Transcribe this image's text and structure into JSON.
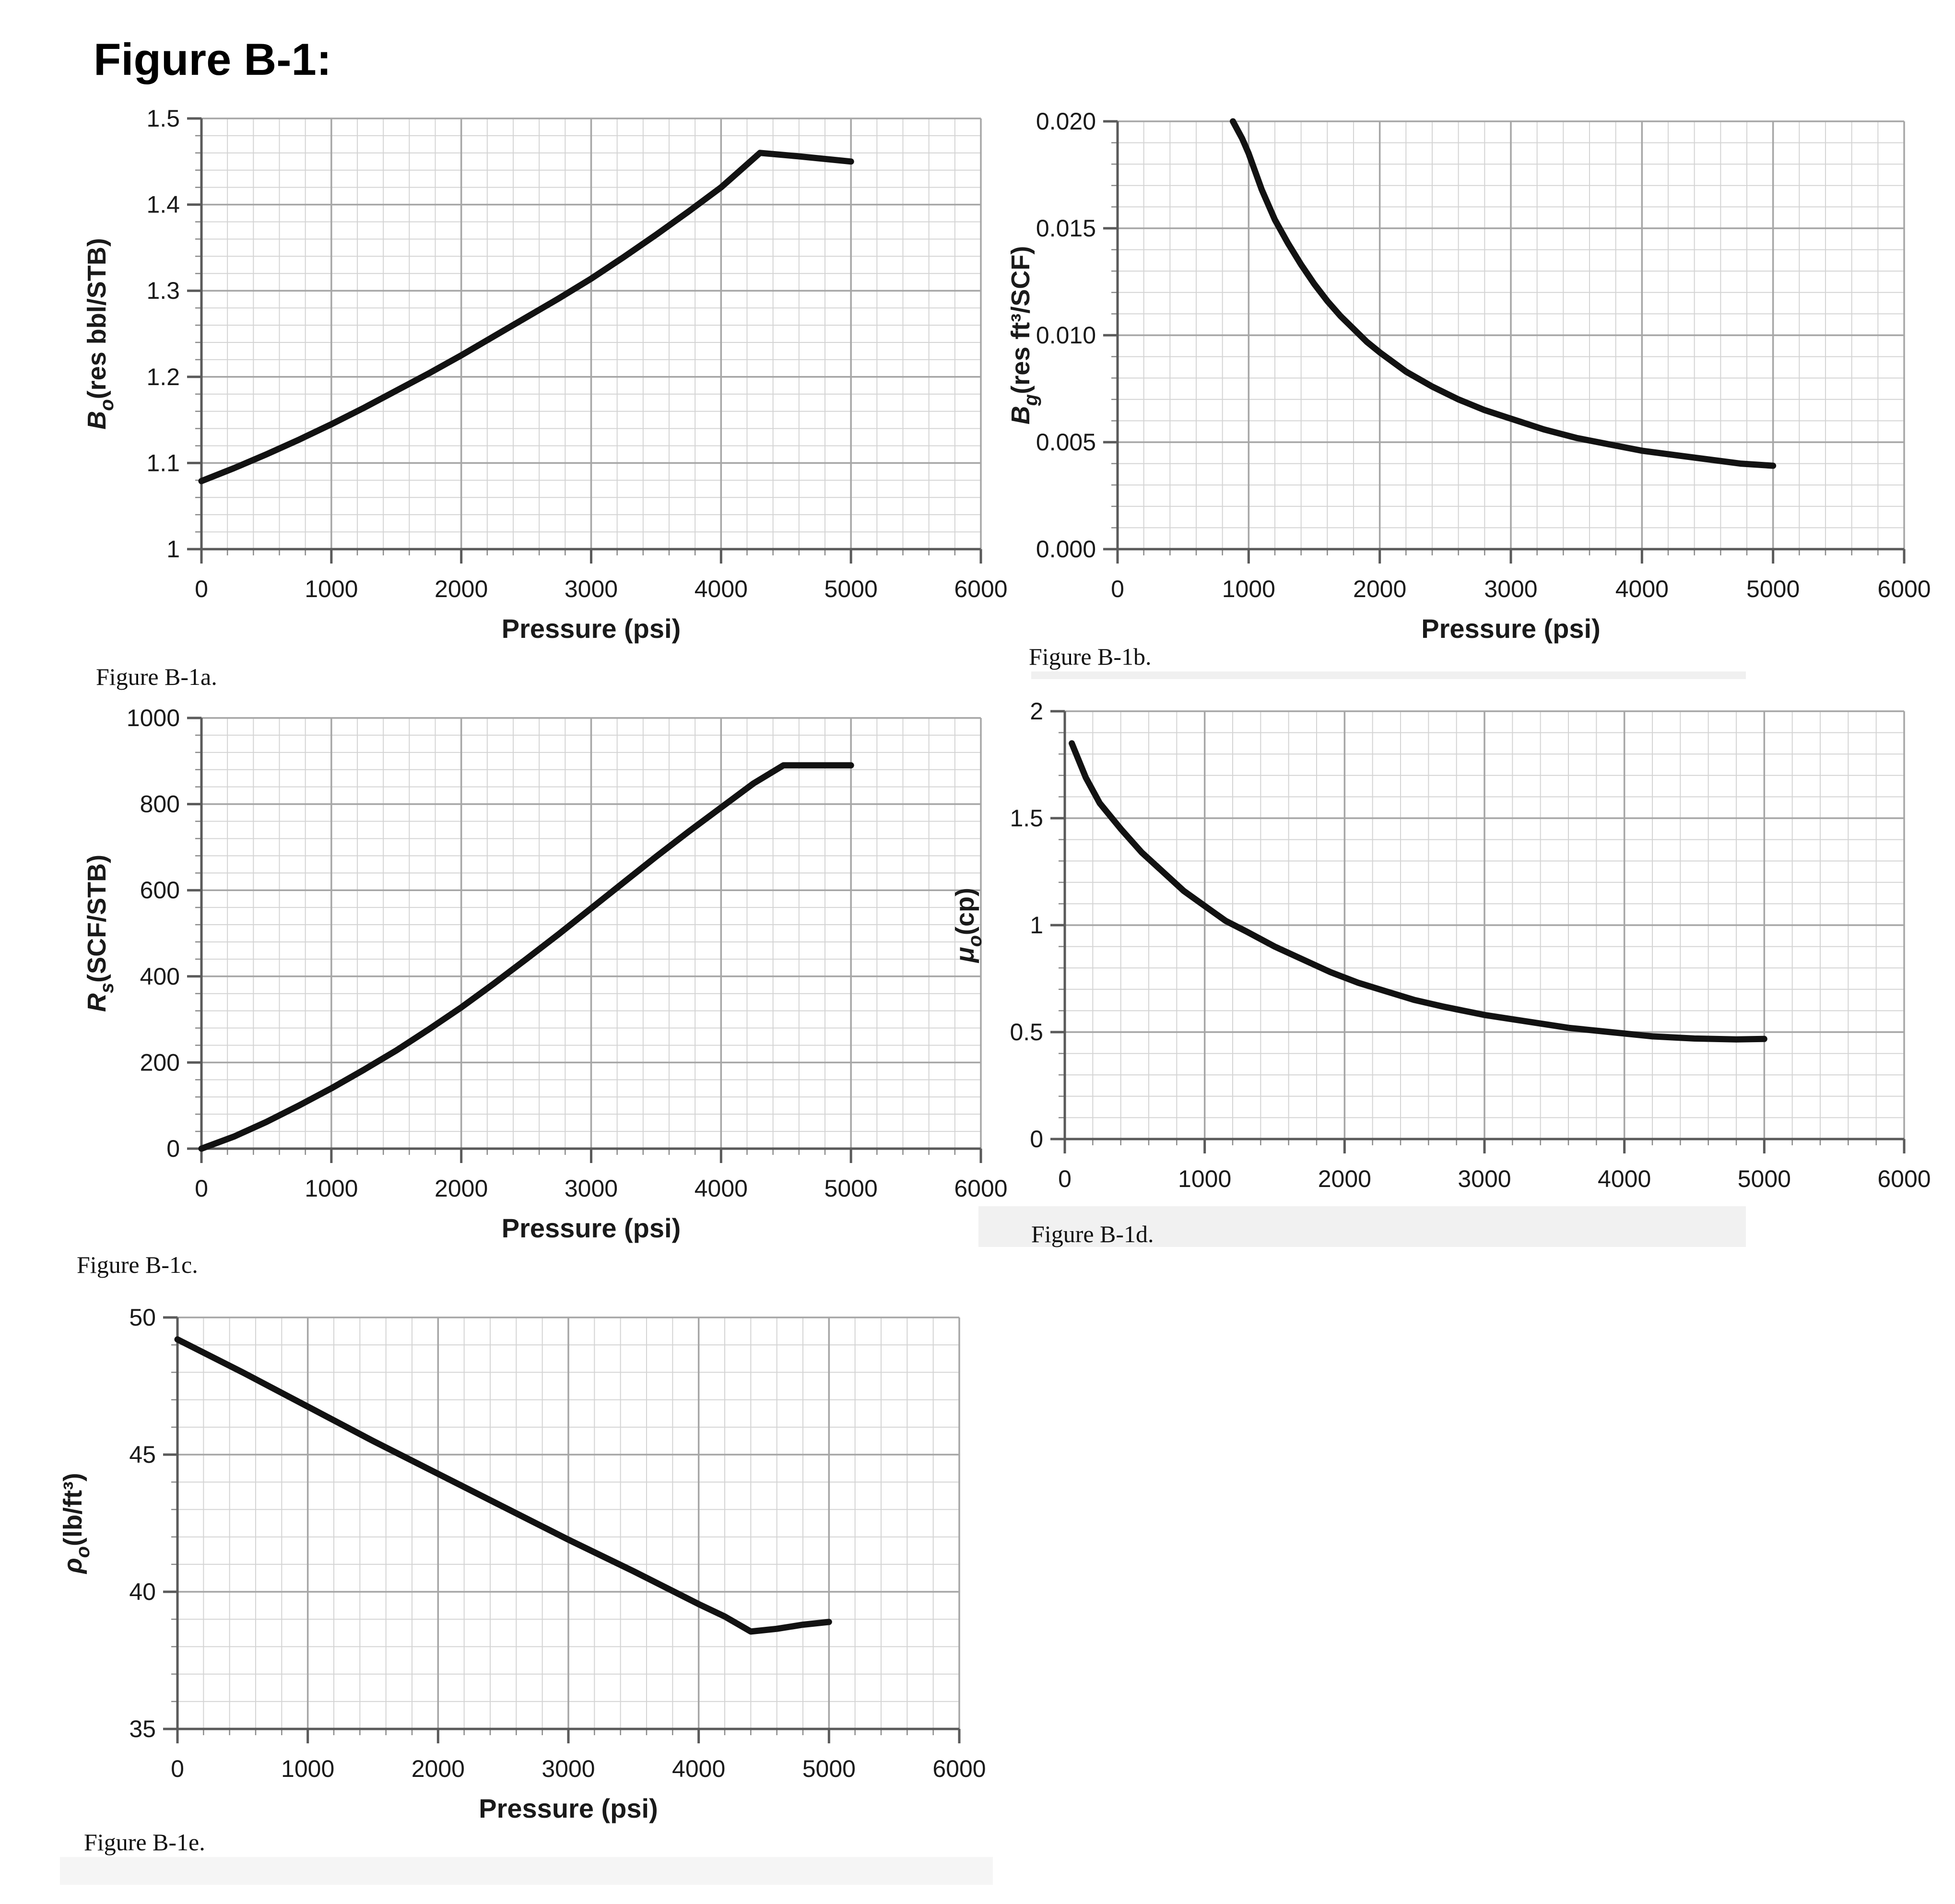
{
  "page_title": "Figure B-1:",
  "colors": {
    "curve": "#121212",
    "grid_major": "#a6a6a6",
    "grid_minor": "#d4d4d4",
    "axis": "#5a5a5a",
    "tick_minor": "#8a8a8a",
    "text": "#1a1a1a",
    "caption_band": "#f1f1f1",
    "background": "#ffffff"
  },
  "chart_data": [
    {
      "id": "B-1a",
      "type": "line",
      "caption": "Figure B-1a.",
      "title": "",
      "xlabel": "Pressure (psi)",
      "ylabel": {
        "symbol": "B",
        "sub": "o",
        "unit": "(res bbl/STB)"
      },
      "xlim": [
        0,
        6000
      ],
      "ylim": [
        1.0,
        1.5
      ],
      "xticks": [
        0,
        1000,
        2000,
        3000,
        4000,
        5000,
        6000
      ],
      "xtick_labels": [
        "0",
        "1000",
        "2000",
        "3000",
        "4000",
        "5000",
        "6000"
      ],
      "yticks": [
        1.0,
        1.1,
        1.2,
        1.3,
        1.4,
        1.5
      ],
      "ytick_labels": [
        "1",
        "1.1",
        "1.2",
        "1.3",
        "1.4",
        "1.5"
      ],
      "x_minor_step": 200,
      "y_minor_step": 0.02,
      "grid": true,
      "legend": "none",
      "series": [
        {
          "name": "Bo",
          "x": [
            0,
            250,
            500,
            750,
            1000,
            1250,
            1500,
            1750,
            2000,
            2250,
            2500,
            2750,
            3000,
            3250,
            3500,
            3750,
            4000,
            4150,
            4300,
            4600,
            5000
          ],
          "y": [
            1.079,
            1.094,
            1.11,
            1.127,
            1.145,
            1.164,
            1.184,
            1.204,
            1.225,
            1.247,
            1.269,
            1.291,
            1.314,
            1.339,
            1.365,
            1.392,
            1.42,
            1.44,
            1.46,
            1.456,
            1.45
          ]
        }
      ]
    },
    {
      "id": "B-1b",
      "type": "line",
      "caption": "Figure B-1b.",
      "title": "",
      "xlabel": "Pressure (psi)",
      "ylabel": {
        "symbol": "B",
        "sub": "g",
        "unit": "(res ft³/SCF)"
      },
      "xlim": [
        0,
        6000
      ],
      "ylim": [
        0.0,
        0.02
      ],
      "xticks": [
        0,
        1000,
        2000,
        3000,
        4000,
        5000,
        6000
      ],
      "xtick_labels": [
        "0",
        "1000",
        "2000",
        "3000",
        "4000",
        "5000",
        "6000"
      ],
      "yticks": [
        0.0,
        0.005,
        0.01,
        0.015,
        0.02
      ],
      "ytick_labels": [
        "0.000",
        "0.005",
        "0.010",
        "0.015",
        "0.020"
      ],
      "x_minor_step": 200,
      "y_minor_step": 0.001,
      "grid": true,
      "legend": "none",
      "series": [
        {
          "name": "Bg",
          "x": [
            880,
            950,
            1000,
            1100,
            1200,
            1300,
            1400,
            1500,
            1600,
            1700,
            1800,
            1900,
            2000,
            2200,
            2400,
            2600,
            2800,
            3000,
            3250,
            3500,
            3750,
            4000,
            4250,
            4500,
            4750,
            5000
          ],
          "y": [
            0.02,
            0.0192,
            0.0185,
            0.0168,
            0.0154,
            0.0143,
            0.0133,
            0.0124,
            0.0116,
            0.0109,
            0.0103,
            0.0097,
            0.0092,
            0.0083,
            0.0076,
            0.007,
            0.0065,
            0.0061,
            0.0056,
            0.0052,
            0.0049,
            0.0046,
            0.0044,
            0.0042,
            0.004,
            0.0039
          ]
        }
      ]
    },
    {
      "id": "B-1c",
      "type": "line",
      "caption": "Figure B-1c.",
      "title": "",
      "xlabel": "Pressure (psi)",
      "ylabel": {
        "symbol": "R",
        "sub": "s",
        "unit": "(SCF/STB)"
      },
      "xlim": [
        0,
        6000
      ],
      "ylim": [
        0,
        1000
      ],
      "xticks": [
        0,
        1000,
        2000,
        3000,
        4000,
        5000,
        6000
      ],
      "xtick_labels": [
        "0",
        "1000",
        "2000",
        "3000",
        "4000",
        "5000",
        "6000"
      ],
      "yticks": [
        0,
        200,
        400,
        600,
        800,
        1000
      ],
      "ytick_labels": [
        "0",
        "200",
        "400",
        "600",
        "800",
        "1000"
      ],
      "x_minor_step": 200,
      "y_minor_step": 40,
      "grid": true,
      "legend": "none",
      "series": [
        {
          "name": "Rs",
          "x": [
            0,
            250,
            500,
            750,
            1000,
            1250,
            1500,
            1750,
            2000,
            2250,
            2500,
            2750,
            3000,
            3250,
            3500,
            3750,
            4000,
            4250,
            4480,
            5000
          ],
          "y": [
            0,
            28,
            62,
            100,
            140,
            183,
            228,
            277,
            328,
            383,
            440,
            498,
            558,
            618,
            678,
            736,
            792,
            848,
            890,
            890
          ]
        }
      ]
    },
    {
      "id": "B-1d",
      "type": "line",
      "caption": "Figure B-1d.",
      "title": "",
      "xlabel": "Pressure (psi)",
      "ylabel": {
        "symbol": "μ",
        "sub": "o",
        "unit": "(cp)"
      },
      "xlim": [
        0,
        6000
      ],
      "ylim": [
        0,
        2
      ],
      "xticks": [
        0,
        1000,
        2000,
        3000,
        4000,
        5000,
        6000
      ],
      "xtick_labels": [
        "0",
        "1000",
        "2000",
        "3000",
        "4000",
        "5000",
        "6000"
      ],
      "yticks": [
        0,
        0.5,
        1,
        1.5,
        2
      ],
      "ytick_labels": [
        "0",
        "0.5",
        "1",
        "1.5",
        "2"
      ],
      "x_minor_step": 200,
      "y_minor_step": 0.1,
      "grid": true,
      "legend": "none",
      "series": [
        {
          "name": "mu_o",
          "x": [
            50,
            150,
            250,
            400,
            550,
            700,
            850,
            1000,
            1150,
            1300,
            1500,
            1700,
            1900,
            2100,
            2300,
            2500,
            2700,
            3000,
            3300,
            3600,
            3900,
            4200,
            4500,
            4800,
            5000
          ],
          "y": [
            1.85,
            1.69,
            1.57,
            1.45,
            1.34,
            1.25,
            1.16,
            1.09,
            1.02,
            0.97,
            0.9,
            0.84,
            0.78,
            0.73,
            0.69,
            0.65,
            0.62,
            0.58,
            0.55,
            0.52,
            0.5,
            0.48,
            0.47,
            0.466,
            0.468
          ]
        }
      ]
    },
    {
      "id": "B-1e",
      "type": "line",
      "caption": "Figure B-1e.",
      "title": "",
      "xlabel": "Pressure (psi)",
      "ylabel": {
        "symbol": "ρ",
        "sub": "o",
        "unit": "(lb/ft³)"
      },
      "xlim": [
        0,
        6000
      ],
      "ylim": [
        35,
        50
      ],
      "xticks": [
        0,
        1000,
        2000,
        3000,
        4000,
        5000,
        6000
      ],
      "xtick_labels": [
        "0",
        "1000",
        "2000",
        "3000",
        "4000",
        "5000",
        "6000"
      ],
      "yticks": [
        35,
        40,
        45,
        50
      ],
      "ytick_labels": [
        "35",
        "40",
        "45",
        "50"
      ],
      "x_minor_step": 200,
      "y_minor_step": 1,
      "grid": true,
      "legend": "none",
      "series": [
        {
          "name": "rho_o",
          "x": [
            0,
            500,
            1000,
            1500,
            2000,
            2500,
            3000,
            3500,
            4000,
            4200,
            4400,
            4600,
            4800,
            5000
          ],
          "y": [
            49.2,
            48.0,
            46.75,
            45.5,
            44.3,
            43.1,
            41.9,
            40.75,
            39.55,
            39.1,
            38.55,
            38.65,
            38.8,
            38.9
          ]
        }
      ]
    }
  ]
}
